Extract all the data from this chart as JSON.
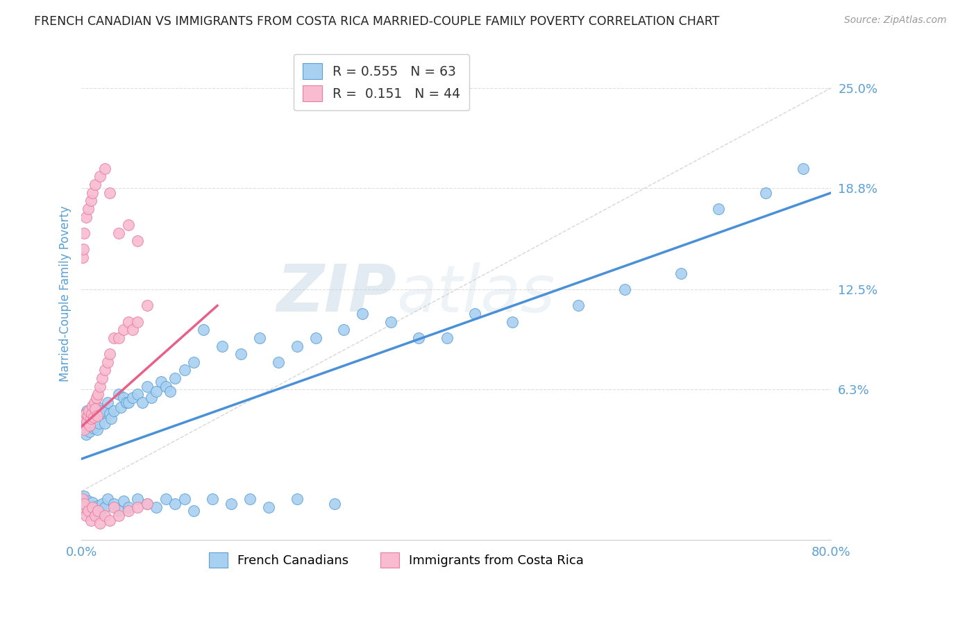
{
  "title": "FRENCH CANADIAN VS IMMIGRANTS FROM COSTA RICA MARRIED-COUPLE FAMILY POVERTY CORRELATION CHART",
  "source": "Source: ZipAtlas.com",
  "ylabel": "Married-Couple Family Poverty",
  "watermark": "ZIPatlas",
  "xlim": [
    0.0,
    0.8
  ],
  "ylim": [
    -0.03,
    0.275
  ],
  "ytick_positions": [
    0.063,
    0.125,
    0.188,
    0.25
  ],
  "ytick_labels": [
    "6.3%",
    "12.5%",
    "18.8%",
    "25.0%"
  ],
  "blue_color": "#A8D0F0",
  "blue_edge_color": "#5B9FD4",
  "pink_color": "#F8BBD0",
  "pink_edge_color": "#E87DA0",
  "blue_line_color": "#4A90D9",
  "pink_line_color": "#E8608A",
  "legend_r_blue": "0.555",
  "legend_n_blue": "63",
  "legend_r_pink": "0.151",
  "legend_n_pink": "44",
  "blue_trend_x0": 0.0,
  "blue_trend_y0": 0.02,
  "blue_trend_x1": 0.8,
  "blue_trend_y1": 0.185,
  "pink_trend_x0": 0.0,
  "pink_trend_y0": 0.04,
  "pink_trend_x1": 0.145,
  "pink_trend_y1": 0.115,
  "ref_line_x": [
    0.0,
    0.8
  ],
  "ref_line_y": [
    0.0,
    0.25
  ],
  "background_color": "#FFFFFF",
  "grid_color": "#DDDDDD",
  "title_color": "#222222",
  "axis_label_color": "#5B9FD4",
  "tick_label_color": "#5B9FD4",
  "blue_x": [
    0.001,
    0.002,
    0.003,
    0.004,
    0.005,
    0.006,
    0.007,
    0.008,
    0.009,
    0.01,
    0.011,
    0.012,
    0.013,
    0.014,
    0.015,
    0.016,
    0.017,
    0.018,
    0.019,
    0.02,
    0.022,
    0.025,
    0.028,
    0.03,
    0.032,
    0.035,
    0.04,
    0.042,
    0.045,
    0.048,
    0.05,
    0.055,
    0.06,
    0.065,
    0.07,
    0.075,
    0.08,
    0.085,
    0.09,
    0.095,
    0.1,
    0.11,
    0.12,
    0.13,
    0.15,
    0.17,
    0.19,
    0.21,
    0.23,
    0.25,
    0.28,
    0.3,
    0.33,
    0.36,
    0.39,
    0.42,
    0.46,
    0.53,
    0.58,
    0.64,
    0.68,
    0.73,
    0.77
  ],
  "blue_y": [
    0.04,
    0.042,
    0.038,
    0.045,
    0.035,
    0.05,
    0.043,
    0.048,
    0.037,
    0.044,
    0.041,
    0.046,
    0.039,
    0.047,
    0.04,
    0.05,
    0.038,
    0.052,
    0.042,
    0.048,
    0.05,
    0.042,
    0.055,
    0.048,
    0.045,
    0.05,
    0.06,
    0.052,
    0.058,
    0.055,
    0.055,
    0.058,
    0.06,
    0.055,
    0.065,
    0.058,
    0.062,
    0.068,
    0.065,
    0.062,
    0.07,
    0.075,
    0.08,
    0.1,
    0.09,
    0.085,
    0.095,
    0.08,
    0.09,
    0.095,
    0.1,
    0.11,
    0.105,
    0.095,
    0.095,
    0.11,
    0.105,
    0.115,
    0.125,
    0.135,
    0.175,
    0.185,
    0.2
  ],
  "blue_neg_x": [
    0.001,
    0.002,
    0.003,
    0.005,
    0.007,
    0.01,
    0.012,
    0.015,
    0.018,
    0.02,
    0.022,
    0.025,
    0.028,
    0.035,
    0.04,
    0.045,
    0.05,
    0.06,
    0.07,
    0.08,
    0.09,
    0.1,
    0.11,
    0.12,
    0.14,
    0.16,
    0.18,
    0.2,
    0.23,
    0.27
  ],
  "blue_neg_y": [
    -0.005,
    -0.008,
    -0.003,
    -0.01,
    -0.006,
    -0.012,
    -0.007,
    -0.015,
    -0.009,
    -0.013,
    -0.008,
    -0.01,
    -0.005,
    -0.008,
    -0.012,
    -0.006,
    -0.01,
    -0.005,
    -0.008,
    -0.01,
    -0.005,
    -0.008,
    -0.005,
    -0.012,
    -0.005,
    -0.008,
    -0.005,
    -0.01,
    -0.005,
    -0.008
  ],
  "pink_x": [
    0.001,
    0.002,
    0.003,
    0.004,
    0.005,
    0.006,
    0.007,
    0.008,
    0.009,
    0.01,
    0.011,
    0.012,
    0.013,
    0.014,
    0.015,
    0.016,
    0.017,
    0.018,
    0.02,
    0.022,
    0.025,
    0.028,
    0.03,
    0.035,
    0.04,
    0.045,
    0.05,
    0.055,
    0.06,
    0.07,
    0.001,
    0.002,
    0.003,
    0.005,
    0.007,
    0.01,
    0.012,
    0.015,
    0.02,
    0.025,
    0.03,
    0.04,
    0.05,
    0.06
  ],
  "pink_y": [
    0.04,
    0.042,
    0.038,
    0.045,
    0.048,
    0.043,
    0.047,
    0.05,
    0.041,
    0.045,
    0.048,
    0.053,
    0.046,
    0.055,
    0.051,
    0.058,
    0.047,
    0.06,
    0.065,
    0.07,
    0.075,
    0.08,
    0.085,
    0.095,
    0.095,
    0.1,
    0.105,
    0.1,
    0.105,
    0.115,
    0.145,
    0.15,
    0.16,
    0.17,
    0.175,
    0.18,
    0.185,
    0.19,
    0.195,
    0.2,
    0.185,
    0.16,
    0.165,
    0.155
  ],
  "pink_neg_x": [
    0.001,
    0.002,
    0.003,
    0.005,
    0.007,
    0.01,
    0.012,
    0.015,
    0.018,
    0.02,
    0.025,
    0.03,
    0.035,
    0.04,
    0.05,
    0.06,
    0.07
  ],
  "pink_neg_y": [
    -0.005,
    -0.01,
    -0.008,
    -0.015,
    -0.012,
    -0.018,
    -0.01,
    -0.015,
    -0.012,
    -0.02,
    -0.015,
    -0.018,
    -0.01,
    -0.015,
    -0.012,
    -0.01,
    -0.008
  ]
}
